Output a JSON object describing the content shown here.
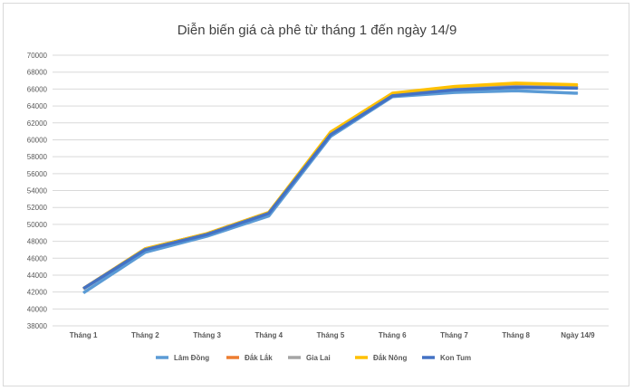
{
  "chart_data": {
    "type": "line",
    "title": "Diễn biến giá cà phê từ tháng 1 đến ngày 14/9",
    "xlabel": "",
    "ylabel": "",
    "categories": [
      "Tháng 1",
      "Tháng 2",
      "Tháng 3",
      "Tháng 4",
      "Tháng 5",
      "Tháng 6",
      "Tháng 7",
      "Tháng 8",
      "Ngày 14/9"
    ],
    "ylim": [
      38000,
      70000
    ],
    "yticks": [
      "38000",
      "40000",
      "42000",
      "44000",
      "46000",
      "48000",
      "50000",
      "52000",
      "54000",
      "56000",
      "58000",
      "60000",
      "62000",
      "64000",
      "66000",
      "68000",
      "70000"
    ],
    "grid": true,
    "legend": "bottom",
    "series": [
      {
        "name": "Lâm Đồng",
        "color": "#5B9BD5",
        "values": [
          41900,
          46700,
          48600,
          51000,
          60400,
          65100,
          65600,
          65800,
          65500
        ]
      },
      {
        "name": "Đắk Lắk",
        "color": "#ED7D31",
        "values": [
          42400,
          47100,
          48900,
          51400,
          60700,
          65300,
          66100,
          66500,
          66300
        ]
      },
      {
        "name": "Gia Lai",
        "color": "#A5A5A5",
        "values": [
          42400,
          47100,
          48900,
          51400,
          60700,
          65300,
          66000,
          66300,
          66200
        ]
      },
      {
        "name": "Đắk Nông",
        "color": "#FFC000",
        "values": [
          42400,
          47100,
          48900,
          51400,
          60900,
          65500,
          66300,
          66700,
          66500
        ]
      },
      {
        "name": "Kon Tum",
        "color": "#4472C4",
        "values": [
          42400,
          47000,
          48800,
          51300,
          60600,
          65200,
          65900,
          66200,
          66100
        ]
      }
    ]
  }
}
